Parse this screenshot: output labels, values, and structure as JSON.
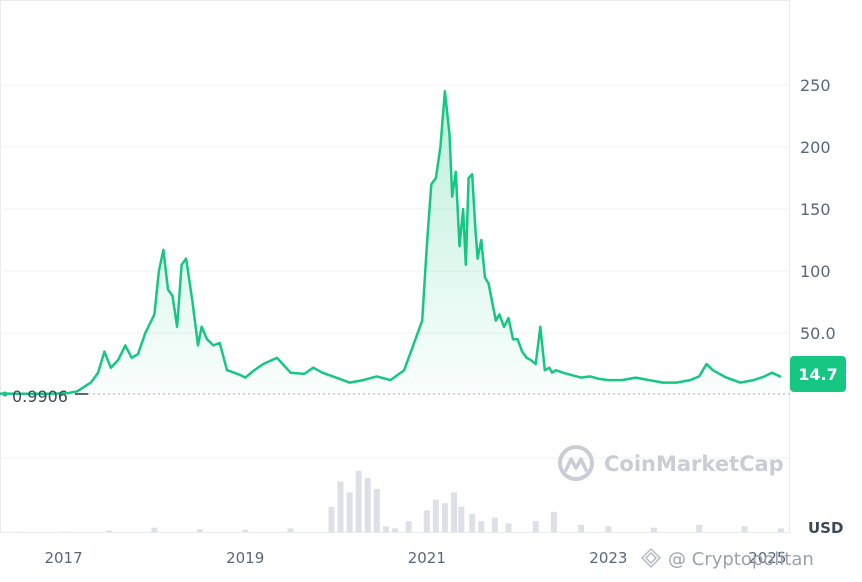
{
  "chart_data": {
    "type": "area",
    "ylim": [
      0.9906,
      265
    ],
    "y_ticks": [
      {
        "value": 50,
        "label": "50.0"
      },
      {
        "value": 100,
        "label": "100"
      },
      {
        "value": 150,
        "label": "150"
      },
      {
        "value": 200,
        "label": "200"
      },
      {
        "value": 250,
        "label": "250"
      }
    ],
    "x_ticks": [
      "2017",
      "2019",
      "2021",
      "2023",
      "2025"
    ],
    "x_tick_positions": [
      2017.0,
      2019.0,
      2021.0,
      2023.0,
      2024.75
    ],
    "xlim": [
      2016.3,
      2025.0
    ],
    "unit_label": "USD",
    "baseline": {
      "value": 0.9906,
      "label": "0.9906"
    },
    "current_price": {
      "value": 14.7,
      "label": "14.7"
    },
    "line_color": "#16c784",
    "series": [
      {
        "x": [
          2016.3,
          2016.5,
          2016.8,
          2016.95,
          2017.05,
          2017.15,
          2017.3,
          2017.38,
          2017.45,
          2017.52,
          2017.6,
          2017.68,
          2017.75,
          2017.82,
          2017.9,
          2018.0,
          2018.05,
          2018.1,
          2018.15,
          2018.2,
          2018.25,
          2018.3,
          2018.35,
          2018.42,
          2018.48,
          2018.52,
          2018.58,
          2018.65,
          2018.72,
          2018.8,
          2018.88,
          2018.95,
          2019.0,
          2019.1,
          2019.2,
          2019.35,
          2019.5,
          2019.65,
          2019.75,
          2019.85,
          2020.0,
          2020.15,
          2020.3,
          2020.45,
          2020.6,
          2020.75,
          2020.85,
          2020.95,
          2021.0,
          2021.05,
          2021.1,
          2021.15,
          2021.2,
          2021.25,
          2021.28,
          2021.32,
          2021.36,
          2021.4,
          2021.43,
          2021.46,
          2021.5,
          2021.53,
          2021.56,
          2021.6,
          2021.64,
          2021.68,
          2021.72,
          2021.76,
          2021.8,
          2021.85,
          2021.9,
          2021.95,
          2022.0,
          2022.05,
          2022.1,
          2022.15,
          2022.2,
          2022.25,
          2022.3,
          2022.35,
          2022.38,
          2022.42,
          2022.5,
          2022.6,
          2022.7,
          2022.8,
          2022.9,
          2023.0,
          2023.15,
          2023.3,
          2023.45,
          2023.6,
          2023.75,
          2023.9,
          2024.0,
          2024.08,
          2024.15,
          2024.3,
          2024.45,
          2024.6,
          2024.72,
          2024.8,
          2024.9
        ],
        "values": [
          1.1,
          1.0,
          0.99,
          1.2,
          1.5,
          3,
          10,
          18,
          35,
          22,
          28,
          40,
          30,
          33,
          50,
          65,
          100,
          117,
          85,
          80,
          55,
          105,
          110,
          75,
          40,
          55,
          45,
          40,
          42,
          20,
          18,
          16,
          14,
          20,
          25,
          30,
          18,
          17,
          22,
          18,
          14,
          10,
          12,
          15,
          12,
          20,
          40,
          60,
          120,
          170,
          175,
          200,
          245,
          210,
          160,
          180,
          120,
          150,
          105,
          175,
          178,
          140,
          110,
          125,
          95,
          90,
          75,
          60,
          65,
          55,
          62,
          45,
          45,
          35,
          30,
          28,
          25,
          55,
          20,
          22,
          18,
          20,
          18,
          16,
          14,
          15,
          13,
          12,
          12,
          14,
          12,
          10,
          10,
          12,
          15,
          25,
          20,
          14,
          10,
          12,
          15,
          18,
          14.7
        ]
      }
    ],
    "volume": {
      "x": [
        2016.5,
        2017.0,
        2017.5,
        2018.0,
        2018.5,
        2019.0,
        2019.5,
        2019.95,
        2020.05,
        2020.15,
        2020.25,
        2020.35,
        2020.45,
        2020.55,
        2020.65,
        2020.8,
        2021.0,
        2021.1,
        2021.2,
        2021.3,
        2021.38,
        2021.5,
        2021.6,
        2021.75,
        2021.9,
        2022.2,
        2022.4,
        2022.7,
        2023.0,
        2023.5,
        2024.0,
        2024.5,
        2024.9
      ],
      "values": [
        0.3,
        0.5,
        2,
        6,
        4,
        3,
        5,
        35,
        70,
        55,
        85,
        75,
        60,
        8,
        5,
        15,
        30,
        45,
        40,
        55,
        35,
        25,
        15,
        20,
        12,
        15,
        28,
        10,
        8,
        6,
        10,
        8,
        5
      ]
    }
  },
  "watermark": {
    "brand": "CoinMarketCap"
  },
  "credit": {
    "text": "@ Cryptopolitan"
  }
}
